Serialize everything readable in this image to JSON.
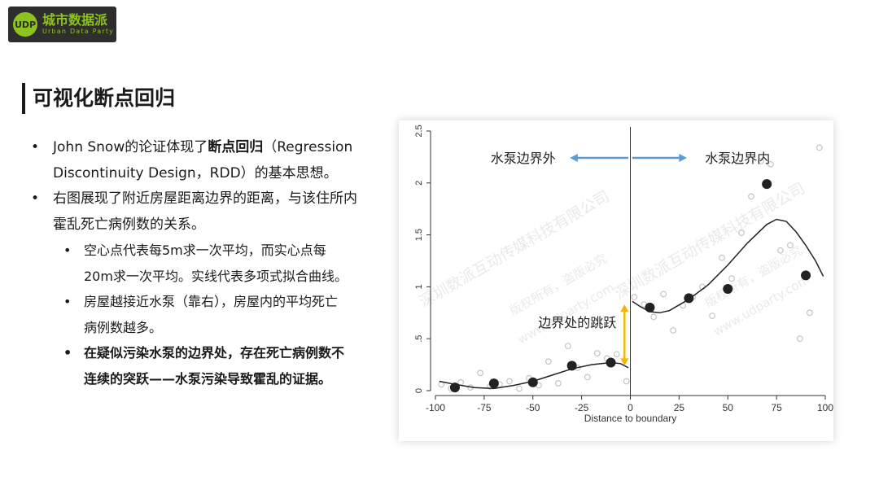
{
  "logo": {
    "badge": "UDP",
    "cn": "城市数据派",
    "en": "Urban Data Party",
    "color": "#8dc21f"
  },
  "title": "可视化断点回归",
  "bullets": {
    "b1_line1_pre": "John Snow的论证体现了",
    "b1_line1_bold": "断点回归",
    "b1_line1_post": "（Regression",
    "b1_line2": "Discontinuity Design，RDD）的基本思想。",
    "b2_line1": "右图展现了附近房屋距离边界的距离，与该住所内",
    "b2_line2": "霍乱死亡病例数的关系。",
    "s1_line1": "空心点代表每5m求一次平均，而实心点每",
    "s1_line2": "20m求一次平均。实线代表多项式拟合曲线。",
    "s2_line1": "房屋越接近水泵（靠右），房屋内的平均死亡",
    "s2_line2": "病例数越多。",
    "s3_line1": "在疑似污染水泵的边界处，存在死亡病例数不",
    "s3_line2": "连续的突跃——水泵污染导致霍乱的证据。"
  },
  "watermark": {
    "line1": "深圳数派互动传媒科技有限公司",
    "line2": "版权所有，盗版必究",
    "line3": "www.udparty.com"
  },
  "chart_data": {
    "type": "scatter",
    "xlabel": "Distance to boundary",
    "ylabel": "",
    "xlim": [
      -100,
      100
    ],
    "ylim": [
      0,
      2.5
    ],
    "xticks": [
      -100,
      -75,
      -50,
      -25,
      0,
      25,
      50,
      75,
      100
    ],
    "yticks": [
      0,
      0.5,
      1,
      1.5,
      2,
      2.5
    ],
    "ytick_labels": [
      "0",
      ".5",
      "1",
      "1.5",
      "2",
      "2.5"
    ],
    "grid": false,
    "cutoff": 0,
    "annotations": {
      "left_label": "水泵边界外",
      "right_label": "水泵边界内",
      "jump_label": "边界处的跳跃",
      "arrow_color": "#5b9bd5",
      "jump_color": "#f2b705"
    },
    "series": [
      {
        "marker": "filled",
        "x": [
          -90,
          -70,
          -50,
          -30,
          -10,
          10,
          30,
          50,
          70,
          90
        ],
        "y": [
          0.03,
          0.07,
          0.08,
          0.24,
          0.27,
          0.8,
          0.89,
          0.98,
          1.99,
          1.11
        ]
      },
      {
        "marker": "hollow",
        "x": [
          -97,
          -92,
          -87,
          -82,
          -77,
          -72,
          -67,
          -62,
          -57,
          -52,
          -47,
          -42,
          -37,
          -32,
          -27,
          -22,
          -17,
          -12,
          -7,
          -2,
          2,
          7,
          12,
          17,
          22,
          27,
          32,
          37,
          42,
          47,
          52,
          57,
          62,
          67,
          72,
          77,
          82,
          87,
          92,
          97
        ],
        "y": [
          0.06,
          0.02,
          0.08,
          0.03,
          0.17,
          0.04,
          0.06,
          0.09,
          0.02,
          0.12,
          0.05,
          0.28,
          0.07,
          0.43,
          0.22,
          0.13,
          0.36,
          0.31,
          0.35,
          0.09,
          0.9,
          0.83,
          0.71,
          0.93,
          0.58,
          0.82,
          0.9,
          1.0,
          0.72,
          1.28,
          1.08,
          1.52,
          1.87,
          2.21,
          2.18,
          1.35,
          1.4,
          0.5,
          0.75,
          2.34
        ]
      },
      {
        "marker": "line",
        "x": [
          -98,
          -90,
          -80,
          -70,
          -60,
          -50,
          -40,
          -30,
          -20,
          -10,
          -5,
          -1,
          1,
          5,
          10,
          15,
          20,
          30,
          40,
          50,
          60,
          70,
          75,
          80,
          85,
          90,
          95,
          99
        ],
        "y": [
          0.09,
          0.06,
          0.03,
          0.02,
          0.05,
          0.09,
          0.15,
          0.21,
          0.25,
          0.27,
          0.26,
          0.22,
          0.86,
          0.81,
          0.76,
          0.75,
          0.77,
          0.88,
          1.02,
          1.21,
          1.42,
          1.6,
          1.65,
          1.63,
          1.53,
          1.4,
          1.25,
          1.1
        ]
      }
    ]
  }
}
